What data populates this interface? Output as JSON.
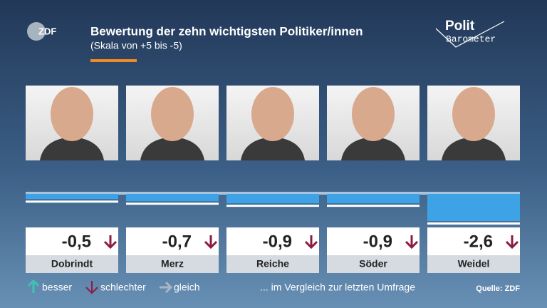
{
  "header": {
    "logo": "ZDF",
    "brand_top": "Polit",
    "brand_bottom": "Barometer"
  },
  "chart_data": {
    "type": "bar",
    "title": "Bewertung der zehn wichtigsten Politiker/innen",
    "subtitle": "(Skala von +5 bis -5)",
    "categories": [
      "Dobrindt",
      "Merz",
      "Reiche",
      "Söder",
      "Weidel"
    ],
    "values": [
      -0.5,
      -0.7,
      -0.9,
      -0.9,
      -2.6
    ],
    "value_labels": [
      "-0,5",
      "-0,7",
      "-0,9",
      "-0,9",
      "-2,6"
    ],
    "trends": [
      "down",
      "down",
      "down",
      "down",
      "down"
    ],
    "color": "#3ea3e6",
    "trend_legend": [
      {
        "label": "besser",
        "trend": "up",
        "color": "#3fc2b4"
      },
      {
        "label": "schlechter",
        "trend": "down",
        "color": "#8c1c40"
      },
      {
        "label": "gleich",
        "trend": "same",
        "color": "#a9b6c6"
      }
    ],
    "note": "... im Vergleich zur letzten Umfrage",
    "source": "Quelle: ZDF"
  }
}
